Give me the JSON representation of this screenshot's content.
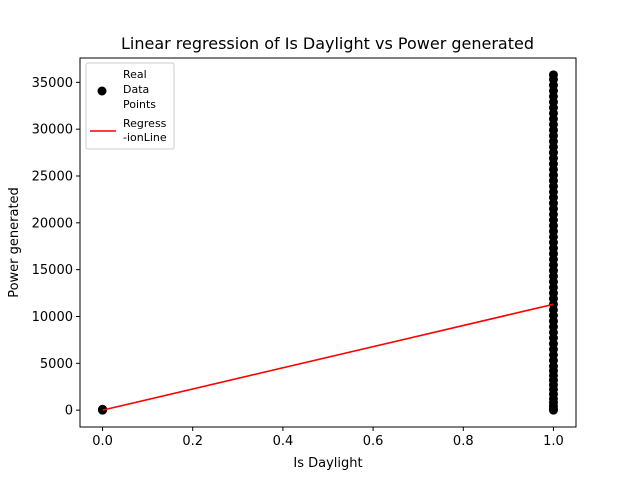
{
  "chart_data": {
    "type": "scatter",
    "title": "Linear regression of Is Daylight vs Power generated",
    "xlabel": "Is Daylight",
    "ylabel": "Power generated",
    "xlim": [
      -0.05,
      1.05
    ],
    "ylim": [
      -1800,
      37600
    ],
    "x_ticks": [
      0.0,
      0.2,
      0.4,
      0.6,
      0.8,
      1.0
    ],
    "x_tick_labels": [
      "0.0",
      "0.2",
      "0.4",
      "0.6",
      "0.8",
      "1.0"
    ],
    "y_ticks": [
      0,
      5000,
      10000,
      15000,
      20000,
      25000,
      30000,
      35000
    ],
    "y_tick_labels": [
      "0",
      "5000",
      "10000",
      "15000",
      "20000",
      "25000",
      "30000",
      "35000"
    ],
    "grid": false,
    "legend_position": "top-left",
    "series": [
      {
        "name": "Real Data Points",
        "legend_lines": [
          "Real",
          "Data",
          "Points"
        ],
        "kind": "scatter",
        "color": "#000000",
        "points": [
          [
            0,
            0
          ],
          [
            0,
            30
          ],
          [
            0,
            60
          ],
          [
            0,
            90
          ],
          [
            1,
            0
          ],
          [
            1,
            150
          ],
          [
            1,
            450
          ],
          [
            1,
            800
          ],
          [
            1,
            1200
          ],
          [
            1,
            1700
          ],
          [
            1,
            2200
          ],
          [
            1,
            2700
          ],
          [
            1,
            3200
          ],
          [
            1,
            3700
          ],
          [
            1,
            4200
          ],
          [
            1,
            4700
          ],
          [
            1,
            5300
          ],
          [
            1,
            5900
          ],
          [
            1,
            6500
          ],
          [
            1,
            7100
          ],
          [
            1,
            7700
          ],
          [
            1,
            8300
          ],
          [
            1,
            8900
          ],
          [
            1,
            9500
          ],
          [
            1,
            10100
          ],
          [
            1,
            10700
          ],
          [
            1,
            11300
          ],
          [
            1,
            11900
          ],
          [
            1,
            12500
          ],
          [
            1,
            13100
          ],
          [
            1,
            13700
          ],
          [
            1,
            14300
          ],
          [
            1,
            14900
          ],
          [
            1,
            15500
          ],
          [
            1,
            16100
          ],
          [
            1,
            16700
          ],
          [
            1,
            17300
          ],
          [
            1,
            17900
          ],
          [
            1,
            18500
          ],
          [
            1,
            19100
          ],
          [
            1,
            19700
          ],
          [
            1,
            20300
          ],
          [
            1,
            20900
          ],
          [
            1,
            21500
          ],
          [
            1,
            22100
          ],
          [
            1,
            22700
          ],
          [
            1,
            23300
          ],
          [
            1,
            23900
          ],
          [
            1,
            24500
          ],
          [
            1,
            25100
          ],
          [
            1,
            25700
          ],
          [
            1,
            26300
          ],
          [
            1,
            26900
          ],
          [
            1,
            27500
          ],
          [
            1,
            28100
          ],
          [
            1,
            28700
          ],
          [
            1,
            29300
          ],
          [
            1,
            29900
          ],
          [
            1,
            30500
          ],
          [
            1,
            31100
          ],
          [
            1,
            31700
          ],
          [
            1,
            32300
          ],
          [
            1,
            32900
          ],
          [
            1,
            33500
          ],
          [
            1,
            34100
          ],
          [
            1,
            34700
          ],
          [
            1,
            35300
          ],
          [
            1,
            35800
          ]
        ]
      },
      {
        "name": "Regress-ionLine",
        "legend_lines": [
          "Regress",
          "-ionLine"
        ],
        "kind": "line",
        "color": "#ff0000",
        "x": [
          0,
          1
        ],
        "y": [
          0,
          11300
        ]
      }
    ]
  }
}
